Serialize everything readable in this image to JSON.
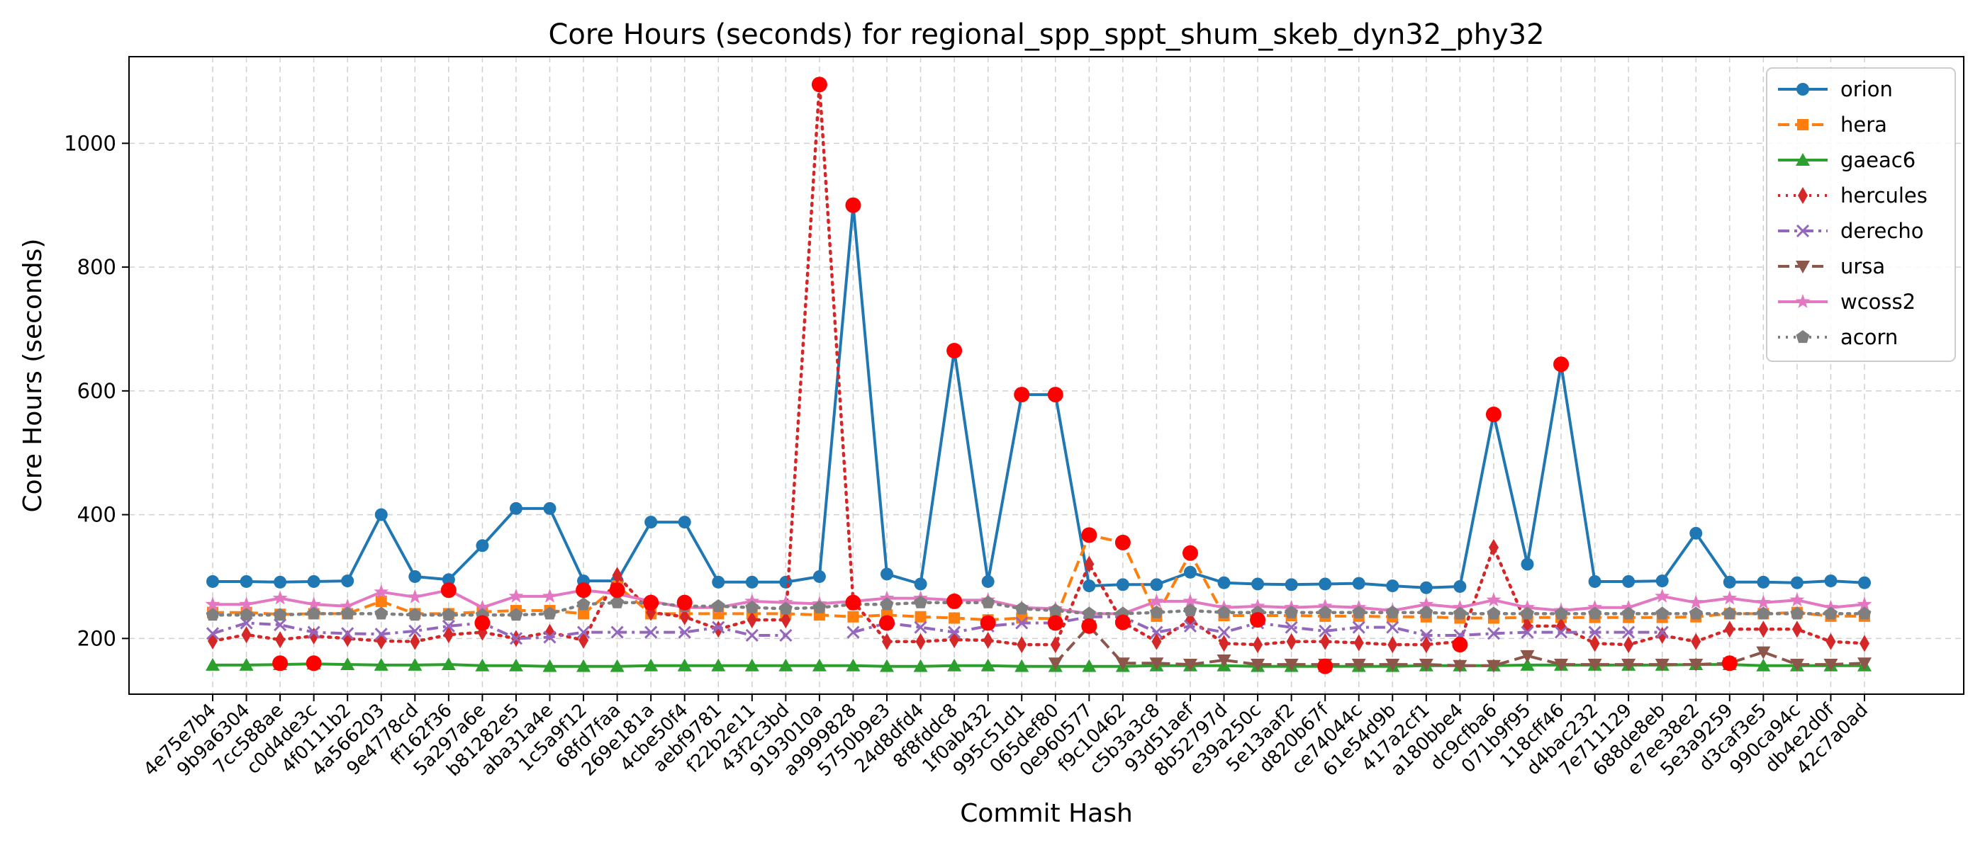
{
  "chart_data": {
    "type": "line",
    "title": "Core Hours (seconds) for regional_spp_sppt_shum_skeb_dyn32_phy32",
    "xlabel": "Commit Hash",
    "ylabel": "Core Hours (seconds)",
    "ylim": [
      110,
      1140
    ],
    "yticks": [
      200,
      400,
      600,
      800,
      1000
    ],
    "grid": true,
    "legend_position": "top-right",
    "categories": [
      "4e75e7b4",
      "9b9a6304",
      "7cc588ae",
      "c0d4de3c",
      "4f0111b2",
      "4a566203",
      "9e4778cd",
      "ff162f36",
      "5a297a6e",
      "b81282e5",
      "aba31a4e",
      "1c5a9f12",
      "68fd7faa",
      "269e181a",
      "4cbe50f4",
      "aebf9781",
      "f22b2e11",
      "43f2c3bd",
      "9193010a",
      "a9999828",
      "5750b9e3",
      "24d8dfd4",
      "8f8fddc8",
      "1f0ab432",
      "995c51d1",
      "065def80",
      "0e960577",
      "f9c10462",
      "c5b3a3c8",
      "93d51aef",
      "8b52797d",
      "e39a250c",
      "5e13aaf2",
      "d820b67f",
      "ce74044c",
      "61e54d9b",
      "417a2cf1",
      "a180bbe4",
      "dc9cfba6",
      "071b9f95",
      "118cff46",
      "d4bac232",
      "7e711129",
      "688de8eb",
      "e7ee38e2",
      "5e3a9259",
      "d3caf3e5",
      "990ca94c",
      "db4e2d0f",
      "42c7a0ad"
    ],
    "series": [
      {
        "name": "orion",
        "color": "#1f77b4",
        "marker": "circle",
        "dash": "solid",
        "values": [
          292,
          292,
          291,
          292,
          293,
          400,
          300,
          295,
          350,
          410,
          410,
          293,
          293,
          388,
          388,
          291,
          291,
          291,
          300,
          900,
          304,
          288,
          665,
          292,
          594,
          594,
          285,
          287,
          287,
          307,
          290,
          288,
          287,
          288,
          289,
          285,
          282,
          284,
          562,
          320,
          643,
          292,
          292,
          293,
          370,
          291,
          291,
          290,
          293,
          290
        ]
      },
      {
        "name": "hera",
        "color": "#ff7f0e",
        "marker": "square",
        "dash": "dashed",
        "values": [
          242,
          242,
          239,
          240,
          240,
          260,
          240,
          240,
          243,
          245,
          245,
          240,
          285,
          240,
          240,
          240,
          240,
          240,
          238,
          235,
          238,
          235,
          233,
          230,
          233,
          232,
          367,
          355,
          236,
          338,
          237,
          237,
          237,
          236,
          236,
          235,
          235,
          233,
          233,
          234,
          234,
          234,
          234,
          234,
          235,
          240,
          240,
          242,
          236,
          236
        ]
      },
      {
        "name": "gaeac6",
        "color": "#2ca02c",
        "marker": "triangle-up",
        "dash": "solid",
        "values": [
          157,
          157,
          158,
          159,
          158,
          157,
          157,
          158,
          156,
          156,
          155,
          155,
          155,
          156,
          156,
          156,
          156,
          156,
          156,
          156,
          155,
          155,
          156,
          156,
          155,
          155,
          155,
          155,
          156,
          156,
          156,
          155,
          155,
          155,
          155,
          155,
          156,
          156,
          156,
          157,
          157,
          157,
          157,
          157,
          158,
          158,
          156,
          156,
          156,
          156
        ]
      },
      {
        "name": "hercules",
        "color": "#d62728",
        "marker": "diamond",
        "dash": "dotted",
        "values": [
          196,
          206,
          198,
          204,
          200,
          196,
          195,
          206,
          210,
          200,
          210,
          197,
          302,
          242,
          235,
          215,
          230,
          230,
          1095,
          260,
          195,
          195,
          198,
          197,
          190,
          190,
          320,
          226,
          195,
          230,
          192,
          190,
          195,
          195,
          193,
          190,
          190,
          195,
          347,
          220,
          220,
          192,
          190,
          205,
          195,
          215,
          215,
          215,
          195,
          192
        ]
      },
      {
        "name": "derecho",
        "color": "#9467bd",
        "marker": "x",
        "dash": "dashdot",
        "values": [
          208,
          225,
          222,
          210,
          208,
          207,
          212,
          220,
          225,
          200,
          202,
          210,
          210,
          210,
          210,
          218,
          205,
          205,
          null,
          210,
          225,
          218,
          210,
          220,
          225,
          225,
          235,
          235,
          210,
          220,
          210,
          225,
          218,
          212,
          218,
          218,
          205,
          205,
          208,
          210,
          210,
          210,
          210,
          210,
          null,
          null,
          null,
          null,
          null,
          null
        ]
      },
      {
        "name": "ursa",
        "color": "#8c564b",
        "marker": "triangle-down",
        "dash": "dashed",
        "values": [
          null,
          null,
          null,
          null,
          null,
          null,
          null,
          null,
          null,
          null,
          null,
          null,
          null,
          null,
          null,
          null,
          null,
          null,
          null,
          null,
          null,
          null,
          null,
          null,
          null,
          160,
          220,
          160,
          160,
          158,
          165,
          158,
          158,
          158,
          158,
          158,
          158,
          156,
          156,
          172,
          158,
          158,
          158,
          158,
          158,
          160,
          178,
          158,
          158,
          160
        ]
      },
      {
        "name": "wcoss2",
        "color": "#e377c2",
        "marker": "star",
        "dash": "solid",
        "values": [
          255,
          255,
          265,
          255,
          252,
          275,
          267,
          278,
          250,
          268,
          268,
          278,
          272,
          260,
          250,
          250,
          260,
          258,
          256,
          260,
          265,
          265,
          262,
          262,
          250,
          248,
          240,
          240,
          260,
          260,
          250,
          252,
          250,
          252,
          250,
          245,
          255,
          250,
          262,
          250,
          245,
          250,
          250,
          268,
          258,
          265,
          258,
          262,
          250,
          255
        ]
      },
      {
        "name": "acorn",
        "color": "#7f7f7f",
        "marker": "pentagon",
        "dash": "dotted",
        "values": [
          238,
          238,
          238,
          240,
          240,
          240,
          238,
          238,
          238,
          238,
          240,
          255,
          258,
          258,
          252,
          252,
          250,
          248,
          250,
          255,
          255,
          258,
          258,
          258,
          248,
          245,
          240,
          240,
          242,
          245,
          242,
          242,
          242,
          242,
          242,
          242,
          242,
          240,
          240,
          240,
          240,
          240,
          240,
          240,
          240,
          240,
          240,
          240,
          240,
          240
        ]
      }
    ],
    "highlighted_points": [
      {
        "category": "7cc588ae",
        "value": 160
      },
      {
        "category": "c0d4de3c",
        "value": 160
      },
      {
        "category": "ff162f36",
        "value": 278
      },
      {
        "category": "5a297a6e",
        "value": 225
      },
      {
        "category": "1c5a9f12",
        "value": 278
      },
      {
        "category": "68fd7faa",
        "value": 278
      },
      {
        "category": "269e181a",
        "value": 258
      },
      {
        "category": "4cbe50f4",
        "value": 258
      },
      {
        "category": "9193010a",
        "value": 1095
      },
      {
        "category": "a9999828",
        "value": 900
      },
      {
        "category": "a9999828",
        "value": 258
      },
      {
        "category": "5750b9e3",
        "value": 225
      },
      {
        "category": "8f8fddc8",
        "value": 665
      },
      {
        "category": "8f8fddc8",
        "value": 260
      },
      {
        "category": "1f0ab432",
        "value": 225
      },
      {
        "category": "995c51d1",
        "value": 594
      },
      {
        "category": "065def80",
        "value": 594
      },
      {
        "category": "065def80",
        "value": 225
      },
      {
        "category": "0e960577",
        "value": 367
      },
      {
        "category": "0e960577",
        "value": 220
      },
      {
        "category": "f9c10462",
        "value": 355
      },
      {
        "category": "f9c10462",
        "value": 226
      },
      {
        "category": "93d51aef",
        "value": 338
      },
      {
        "category": "e39a250c",
        "value": 230
      },
      {
        "category": "d820b67f",
        "value": 155
      },
      {
        "category": "a180bbe4",
        "value": 190
      },
      {
        "category": "dc9cfba6",
        "value": 562
      },
      {
        "category": "118cff46",
        "value": 643
      },
      {
        "category": "5e3a9259",
        "value": 160
      }
    ],
    "highlight_color": "#ff0000"
  }
}
